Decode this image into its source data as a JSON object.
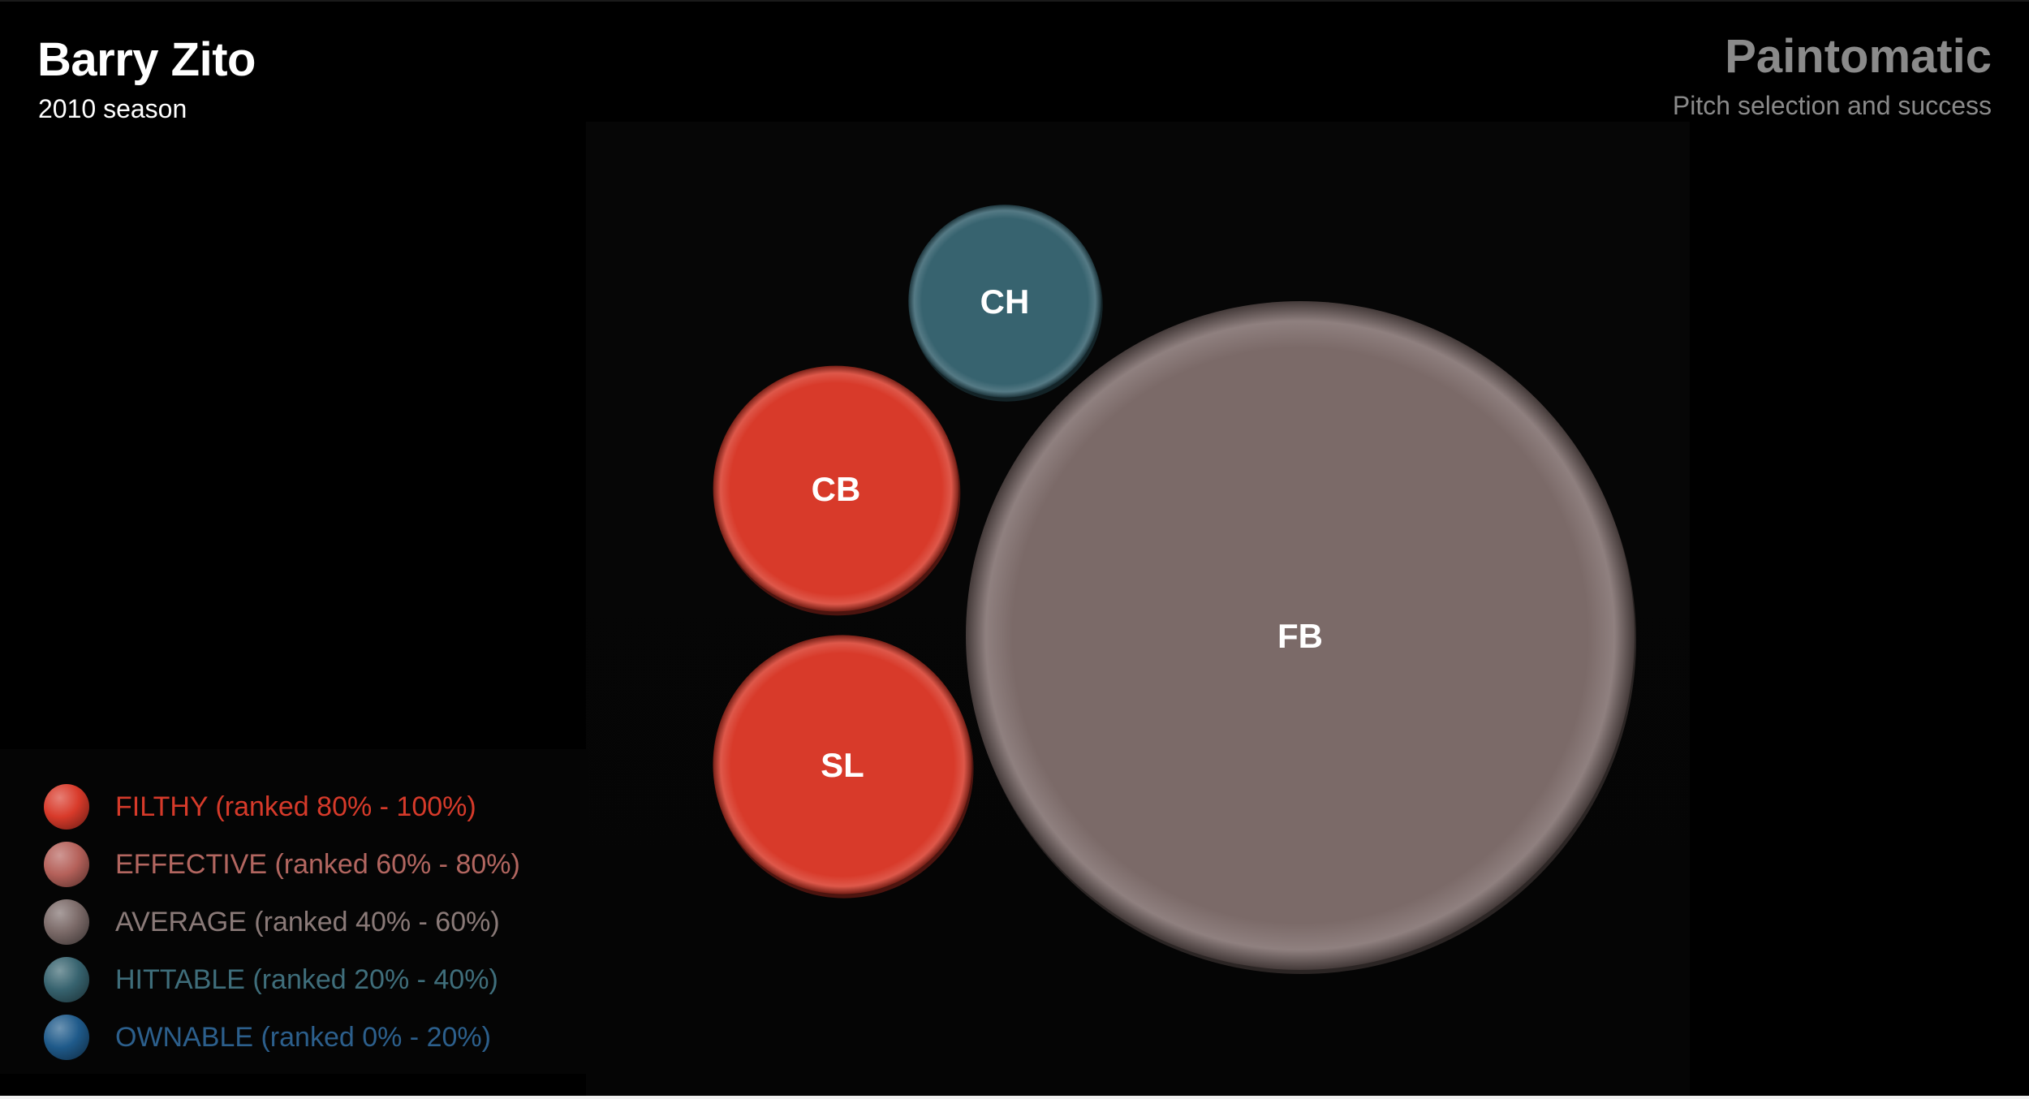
{
  "header": {
    "player": "Barry Zito",
    "season": "2010 season"
  },
  "brand": {
    "name": "Paintomatic",
    "subtitle": "Pitch selection and success"
  },
  "legend": [
    {
      "label": "FILTHY (ranked 80% - 100%)",
      "color": "#d83a2a",
      "text_color": "#d63a2a"
    },
    {
      "label": "EFFECTIVE (ranked 60% - 80%)",
      "color": "#b5615a",
      "text_color": "#b26660"
    },
    {
      "label": "AVERAGE (ranked 40% - 60%)",
      "color": "#7b6a68",
      "text_color": "#8a7a78"
    },
    {
      "label": "HITTABLE (ranked 20% - 40%)",
      "color": "#37636f",
      "text_color": "#3f6e7b"
    },
    {
      "label": "OWNABLE (ranked 0% - 20%)",
      "color": "#1f5a8a",
      "text_color": "#2c5f8c"
    }
  ],
  "chart_data": {
    "type": "bubble",
    "series": [
      {
        "name": "FB",
        "size": 100,
        "category": "AVERAGE",
        "color": "#7b6a68"
      },
      {
        "name": "SL",
        "size": 15,
        "category": "FILTHY",
        "color": "#d83a2a"
      },
      {
        "name": "CB",
        "size": 13.5,
        "category": "FILTHY",
        "color": "#d83a2a"
      },
      {
        "name": "CH",
        "size": 8.3,
        "category": "HITTABLE",
        "color": "#37636f"
      }
    ]
  }
}
